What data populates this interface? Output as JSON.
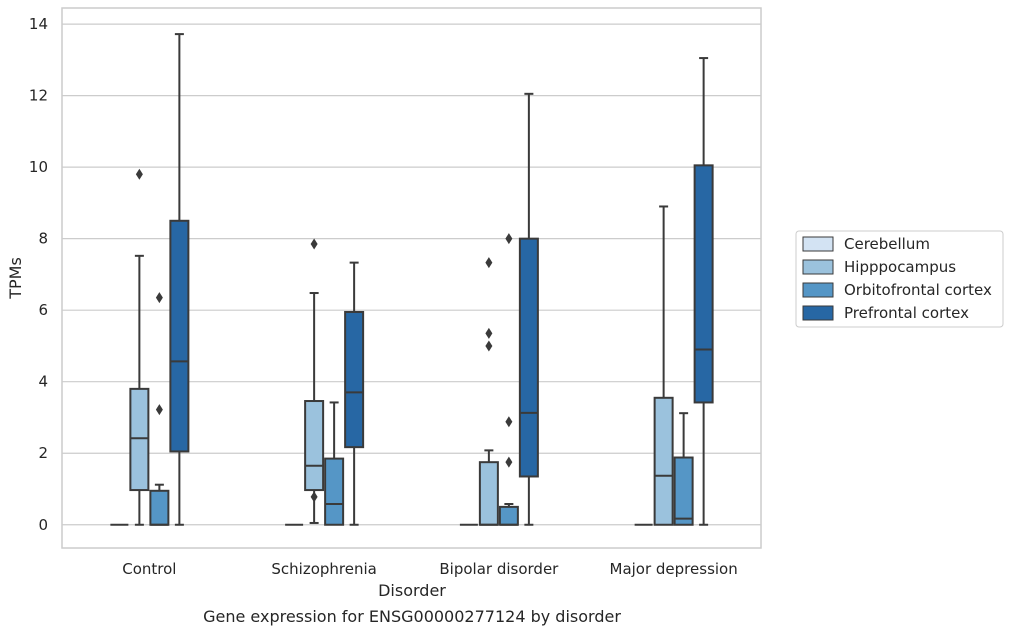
{
  "chart_data": {
    "type": "box",
    "title": "",
    "caption": "Gene expression for ENSG00000277124 by disorder",
    "xlabel": "Disorder",
    "ylabel": "TPMs",
    "ylim": [
      -0.65,
      14.45
    ],
    "yticks": [
      0,
      2,
      4,
      6,
      8,
      10,
      12,
      14
    ],
    "grid": "horizontal",
    "legend_position": "right",
    "categories": [
      "Control",
      "Schizophrenia",
      "Bipolar disorder",
      "Major depression"
    ],
    "series": [
      {
        "name": "Cerebellum",
        "color": "#d3e3f3",
        "boxes": [
          {
            "whisker_low": 0,
            "q1": 0,
            "median": 0,
            "q3": 0,
            "whisker_high": 0,
            "outliers": []
          },
          {
            "whisker_low": 0,
            "q1": 0,
            "median": 0,
            "q3": 0,
            "whisker_high": 0,
            "outliers": []
          },
          {
            "whisker_low": 0,
            "q1": 0,
            "median": 0,
            "q3": 0,
            "whisker_high": 0,
            "outliers": []
          },
          {
            "whisker_low": 0,
            "q1": 0,
            "median": 0,
            "q3": 0,
            "whisker_high": 0,
            "outliers": []
          }
        ]
      },
      {
        "name": "Hipppocampus",
        "color": "#9bc2dd",
        "boxes": [
          {
            "whisker_low": 0,
            "q1": 0.97,
            "median": 2.42,
            "q3": 3.8,
            "whisker_high": 7.52,
            "outliers": [
              9.8
            ]
          },
          {
            "whisker_low": 0.05,
            "q1": 0.97,
            "median": 1.65,
            "q3": 3.46,
            "whisker_high": 6.48,
            "outliers": [
              0.78,
              7.85
            ]
          },
          {
            "whisker_low": 0,
            "q1": 0,
            "median": 0,
            "q3": 1.75,
            "whisker_high": 2.08,
            "outliers": [
              5.0,
              5.35,
              7.33
            ]
          },
          {
            "whisker_low": 0,
            "q1": 0,
            "median": 1.37,
            "q3": 3.55,
            "whisker_high": 8.9,
            "outliers": []
          }
        ]
      },
      {
        "name": "Orbitofrontal cortex",
        "color": "#5596c6",
        "boxes": [
          {
            "whisker_low": 0,
            "q1": 0,
            "median": 0,
            "q3": 0.95,
            "whisker_high": 1.12,
            "outliers": [
              3.22,
              6.35
            ]
          },
          {
            "whisker_low": 0,
            "q1": 0,
            "median": 0.58,
            "q3": 1.85,
            "whisker_high": 3.42,
            "outliers": []
          },
          {
            "whisker_low": 0,
            "q1": 0,
            "median": 0,
            "q3": 0.5,
            "whisker_high": 0.58,
            "outliers": [
              1.75,
              2.88,
              8.0
            ]
          },
          {
            "whisker_low": 0,
            "q1": 0,
            "median": 0.17,
            "q3": 1.88,
            "whisker_high": 3.12,
            "outliers": []
          }
        ]
      },
      {
        "name": "Prefrontal cortex",
        "color": "#2767a4",
        "boxes": [
          {
            "whisker_low": 0,
            "q1": 2.05,
            "median": 4.57,
            "q3": 8.5,
            "whisker_high": 13.72,
            "outliers": []
          },
          {
            "whisker_low": 0,
            "q1": 2.17,
            "median": 3.7,
            "q3": 5.95,
            "whisker_high": 7.33,
            "outliers": []
          },
          {
            "whisker_low": 0,
            "q1": 1.35,
            "median": 3.13,
            "q3": 8.0,
            "whisker_high": 12.05,
            "outliers": []
          },
          {
            "whisker_low": 0,
            "q1": 3.42,
            "median": 4.9,
            "q3": 10.05,
            "whisker_high": 13.05,
            "outliers": []
          }
        ]
      }
    ]
  }
}
